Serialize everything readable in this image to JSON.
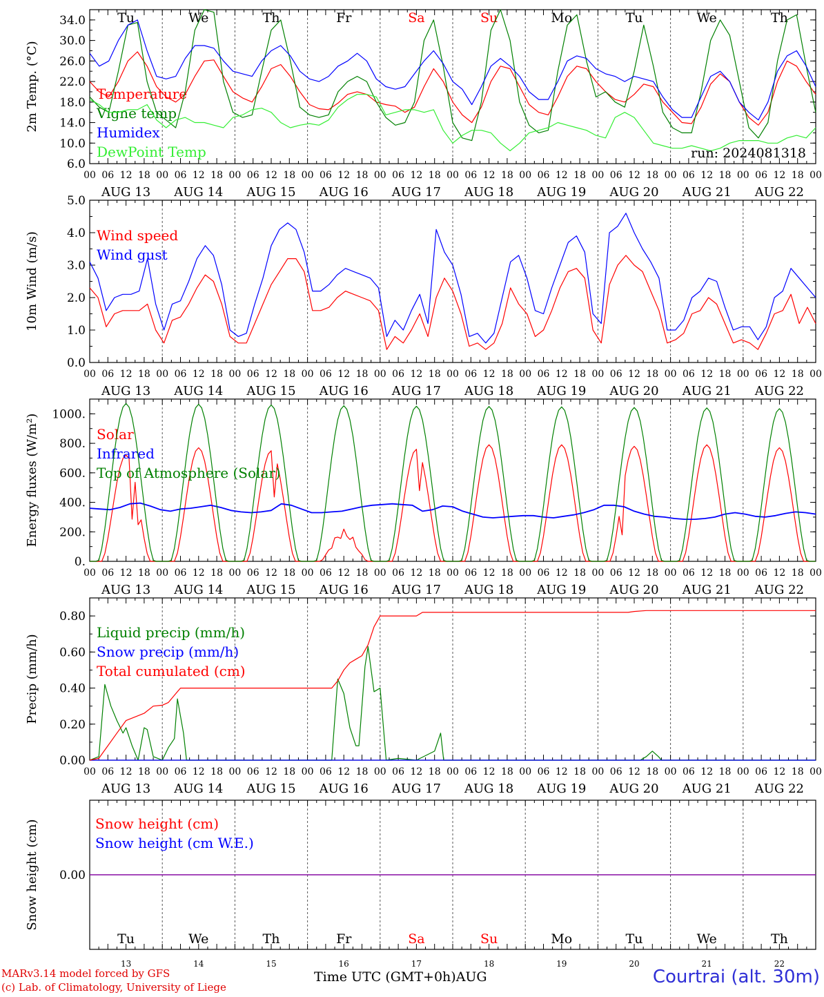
{
  "run_label": "run: 2024081318",
  "footer": {
    "credit_line1": "MARv3.14 model forced by GFS",
    "credit_line2": "(c) Lab. of Climatology, University of Liege",
    "xlabel": "Time UTC (GMT+0h)",
    "month": "AUG",
    "station": "Courtrai (alt. 30m)"
  },
  "days": {
    "names": [
      "Tu",
      "We",
      "Th",
      "Fr",
      "Sa",
      "Su",
      "Mo",
      "Tu",
      "We",
      "Th"
    ],
    "weekend_flags": [
      false,
      false,
      false,
      false,
      true,
      true,
      false,
      false,
      false,
      false
    ],
    "dates": [
      "AUG 13",
      "AUG 14",
      "AUG 15",
      "AUG 16",
      "AUG 17",
      "AUG 18",
      "AUG 19",
      "AUG 20",
      "AUG 21",
      "AUG 22"
    ],
    "numbers": [
      "13",
      "14",
      "15",
      "16",
      "17",
      "18",
      "19",
      "20",
      "21",
      "22"
    ],
    "hour_ticks": [
      "00",
      "06",
      "12",
      "18"
    ],
    "final_tick": "00"
  },
  "colors": {
    "red": "#ff0000",
    "green": "#008000",
    "blue": "#0000ff",
    "lightgreen": "#33ee33",
    "purple": "#8000a0",
    "axis": "#000000"
  },
  "chart_data": [
    {
      "type": "line",
      "ylabel": "2m Temp. (°C)",
      "ylim": [
        6,
        36
      ],
      "yticks": [
        "6.0",
        "10.0",
        "14.0",
        "18.0",
        "22.0",
        "26.0",
        "30.0",
        "34.0"
      ],
      "ytick_values": [
        6,
        10,
        14,
        18,
        22,
        26,
        30,
        34
      ],
      "x": "hours from 2024-08-13 00 UTC, 3-hourly",
      "series": [
        {
          "name": "Temperature",
          "color": "red",
          "values": [
            22.0,
            20.0,
            19.0,
            22.0,
            26.0,
            27.8,
            25.0,
            21.0,
            19.0,
            18.0,
            19.5,
            23.0,
            26.0,
            26.2,
            23.0,
            20.0,
            18.8,
            18.0,
            21.0,
            24.5,
            25.3,
            23.0,
            20.0,
            17.5,
            16.7,
            16.5,
            17.8,
            19.5,
            20.0,
            19.5,
            18.0,
            17.5,
            17.2,
            16.0,
            17.0,
            21.0,
            24.5,
            22.0,
            18.0,
            15.5,
            14.0,
            17.0,
            22.0,
            25.0,
            24.5,
            21.0,
            17.5,
            16.0,
            15.5,
            19.0,
            23.0,
            25.0,
            24.5,
            22.0,
            20.0,
            18.5,
            18.0,
            19.5,
            21.5,
            21.0,
            18.0,
            16.0,
            14.0,
            13.8,
            17.0,
            21.5,
            23.5,
            22.0,
            18.0,
            15.0,
            13.5,
            16.0,
            22.0,
            26.0,
            25.0,
            22.0,
            19.5
          ]
        },
        {
          "name": "Vigne temp",
          "color": "green",
          "values": [
            19.0,
            17.0,
            16.0,
            24.0,
            33.0,
            33.5,
            22.0,
            16.0,
            14.5,
            13.0,
            20.0,
            32.0,
            36.0,
            35.5,
            22.0,
            16.0,
            15.0,
            15.5,
            24.0,
            32.0,
            34.0,
            26.0,
            17.0,
            15.5,
            15.0,
            15.5,
            20.0,
            22.0,
            23.0,
            22.0,
            18.0,
            15.0,
            13.5,
            14.0,
            18.0,
            30.0,
            34.0,
            25.0,
            14.0,
            11.0,
            10.5,
            18.0,
            32.0,
            36.0,
            30.0,
            18.0,
            13.5,
            12.0,
            12.5,
            24.0,
            33.0,
            35.0,
            26.0,
            19.0,
            20.0,
            18.0,
            17.0,
            24.0,
            33.0,
            25.0,
            16.0,
            13.0,
            12.0,
            12.0,
            20.0,
            30.0,
            34.0,
            31.0,
            22.0,
            13.0,
            11.0,
            14.0,
            26.0,
            34.0,
            35.0,
            25.0,
            16.0
          ]
        },
        {
          "name": "Humidex",
          "color": "blue",
          "values": [
            27.5,
            25.0,
            26.0,
            30.0,
            33.0,
            34.0,
            28.0,
            23.0,
            22.5,
            23.0,
            26.5,
            29.0,
            29.0,
            28.5,
            26.0,
            24.0,
            23.5,
            23.0,
            26.0,
            28.0,
            29.0,
            27.0,
            24.0,
            22.5,
            22.0,
            23.0,
            25.0,
            26.0,
            27.5,
            26.0,
            22.5,
            21.0,
            20.5,
            21.0,
            23.5,
            26.0,
            28.0,
            25.5,
            22.0,
            20.5,
            17.5,
            21.0,
            25.0,
            26.5,
            25.0,
            23.0,
            20.0,
            18.5,
            18.5,
            22.0,
            26.0,
            27.0,
            26.5,
            24.5,
            23.5,
            23.0,
            22.0,
            23.0,
            22.5,
            22.0,
            19.0,
            16.5,
            15.0,
            15.0,
            19.0,
            23.0,
            24.0,
            22.0,
            18.0,
            16.0,
            14.5,
            18.0,
            24.0,
            27.0,
            28.0,
            25.0,
            21.0
          ]
        },
        {
          "name": "DewPoint Temp",
          "color": "lightgreen",
          "values": [
            18.5,
            17.5,
            16.0,
            16.0,
            16.5,
            16.5,
            17.5,
            14.5,
            13.0,
            14.5,
            15.0,
            14.0,
            14.0,
            13.5,
            13.0,
            15.0,
            15.5,
            16.5,
            16.8,
            16.0,
            14.0,
            13.0,
            13.5,
            13.8,
            13.5,
            14.5,
            17.0,
            18.5,
            19.5,
            19.5,
            19.0,
            15.5,
            16.0,
            16.5,
            16.5,
            16.0,
            16.5,
            12.5,
            10.0,
            11.5,
            12.5,
            12.5,
            12.0,
            10.0,
            8.5,
            10.0,
            12.0,
            12.5,
            13.0,
            14.0,
            13.5,
            13.0,
            12.5,
            11.5,
            11.0,
            15.0,
            16.0,
            15.0,
            12.5,
            10.0,
            9.5,
            9.0,
            9.0,
            9.5,
            9.0,
            8.5,
            9.0,
            10.0,
            10.5,
            10.5,
            10.5,
            10.0,
            10.0,
            11.0,
            11.5,
            11.0,
            13.0
          ]
        }
      ]
    },
    {
      "type": "line",
      "ylabel": "10m Wind (m/s)",
      "ylim": [
        0,
        5
      ],
      "yticks": [
        "0.0",
        "1.0",
        "2.0",
        "3.0",
        "4.0",
        "5.0"
      ],
      "ytick_values": [
        0,
        1,
        2,
        3,
        4,
        5
      ],
      "series": [
        {
          "name": "Wind speed",
          "color": "red",
          "values": [
            2.3,
            2.0,
            1.1,
            1.5,
            1.6,
            1.6,
            1.6,
            1.8,
            1.0,
            0.6,
            1.3,
            1.4,
            1.8,
            2.3,
            2.7,
            2.5,
            1.8,
            0.8,
            0.6,
            0.6,
            1.2,
            1.8,
            2.4,
            2.8,
            3.2,
            3.2,
            2.8,
            1.6,
            1.6,
            1.7,
            2.0,
            2.2,
            2.1,
            2.0,
            1.9,
            1.6,
            0.4,
            0.8,
            0.6,
            1.0,
            1.5,
            0.8,
            2.0,
            2.6,
            2.2,
            1.5,
            0.5,
            0.6,
            0.4,
            0.6,
            1.2,
            2.3,
            1.8,
            1.5,
            0.8,
            1.0,
            1.6,
            2.3,
            2.8,
            2.9,
            2.6,
            1.0,
            0.6,
            2.4,
            3.0,
            3.3,
            3.0,
            2.8,
            2.2,
            1.6,
            0.6,
            0.7,
            0.9,
            1.5,
            1.6,
            2.0,
            1.8,
            1.2,
            0.6,
            0.7,
            0.6,
            0.4,
            0.9,
            1.5,
            1.6,
            2.1,
            1.2,
            1.7,
            1.2
          ]
        },
        {
          "name": "Wind gust",
          "color": "blue",
          "values": [
            3.1,
            2.6,
            1.6,
            2.0,
            2.1,
            2.1,
            2.2,
            3.2,
            1.8,
            1.0,
            1.8,
            1.9,
            2.5,
            3.2,
            3.6,
            3.3,
            2.4,
            1.0,
            0.8,
            0.9,
            1.8,
            2.6,
            3.6,
            4.1,
            4.3,
            4.1,
            3.4,
            2.2,
            2.2,
            2.4,
            2.7,
            2.9,
            2.8,
            2.7,
            2.6,
            2.3,
            0.8,
            1.3,
            1.0,
            1.6,
            2.1,
            1.2,
            4.1,
            3.4,
            3.0,
            2.1,
            0.8,
            0.9,
            0.6,
            0.9,
            2.0,
            3.1,
            3.3,
            2.6,
            1.6,
            1.5,
            2.3,
            3.0,
            3.7,
            3.9,
            3.4,
            1.5,
            1.2,
            4.0,
            4.2,
            4.6,
            4.0,
            3.5,
            3.1,
            2.6,
            1.0,
            1.0,
            1.3,
            2.0,
            2.2,
            2.6,
            2.5,
            1.7,
            1.0,
            1.1,
            1.1,
            0.7,
            1.1,
            2.0,
            2.2,
            2.9,
            2.6,
            2.3,
            2.0
          ]
        }
      ]
    },
    {
      "type": "line",
      "ylabel": "Energy fluxes (W/m²)",
      "ylim": [
        0,
        1100
      ],
      "yticks": [
        "0.",
        "200.",
        "400.",
        "600.",
        "800.",
        "1000."
      ],
      "ytick_values": [
        0,
        200,
        400,
        600,
        800,
        1000
      ],
      "series": [
        {
          "name": "Solar",
          "color": "red",
          "peaks": [
            720,
            770,
            750,
            220,
            760,
            790,
            790,
            780,
            790,
            770
          ]
        },
        {
          "name": "Infrared",
          "color": "blue",
          "values": [
            360,
            355,
            350,
            365,
            390,
            395,
            375,
            350,
            340,
            355,
            360,
            370,
            380,
            365,
            345,
            335,
            330,
            335,
            345,
            390,
            380,
            355,
            330,
            330,
            335,
            340,
            355,
            370,
            380,
            385,
            390,
            385,
            380,
            340,
            350,
            375,
            370,
            340,
            320,
            300,
            295,
            300,
            305,
            310,
            310,
            300,
            295,
            305,
            315,
            330,
            350,
            380,
            380,
            370,
            340,
            320,
            305,
            300,
            290,
            285,
            285,
            290,
            300,
            320,
            330,
            320,
            305,
            300,
            310,
            325,
            335,
            330,
            320
          ]
        },
        {
          "name": "Top of Atmosphere (Solar)",
          "color": "green",
          "peaks": [
            1070,
            1065,
            1060,
            1055,
            1052,
            1050,
            1047,
            1043,
            1040,
            1035
          ]
        }
      ]
    },
    {
      "type": "line",
      "ylabel": "Precip (mm/h)",
      "ylim": [
        0,
        0.9
      ],
      "yticks": [
        "0.00",
        "0.20",
        "0.40",
        "0.60",
        "0.80"
      ],
      "ytick_values": [
        0,
        0.2,
        0.4,
        0.6,
        0.8
      ],
      "series": [
        {
          "name": "Liquid precip (mm/h)",
          "color": "green",
          "points": [
            [
              0,
              0
            ],
            [
              3,
              0.02
            ],
            [
              5,
              0.42
            ],
            [
              7,
              0.3
            ],
            [
              9,
              0.22
            ],
            [
              11,
              0.15
            ],
            [
              12,
              0.18
            ],
            [
              14,
              0.08
            ],
            [
              16,
              0.0
            ],
            [
              18,
              0.18
            ],
            [
              19,
              0.17
            ],
            [
              21,
              0.02
            ],
            [
              24,
              0.0
            ],
            [
              26,
              0.07
            ],
            [
              28,
              0.12
            ],
            [
              29,
              0.34
            ],
            [
              31,
              0.15
            ],
            [
              32,
              0.0
            ],
            [
              80,
              0.0
            ],
            [
              82,
              0.45
            ],
            [
              84,
              0.37
            ],
            [
              86,
              0.18
            ],
            [
              88,
              0.08
            ],
            [
              89,
              0.08
            ],
            [
              91,
              0.52
            ],
            [
              92,
              0.63
            ],
            [
              94,
              0.38
            ],
            [
              96,
              0.4
            ],
            [
              98,
              0.0
            ],
            [
              102,
              0.01
            ],
            [
              108,
              0.0
            ],
            [
              114,
              0.05
            ],
            [
              116,
              0.15
            ],
            [
              117,
              0.0
            ],
            [
              182,
              0.0
            ],
            [
              184,
              0.02
            ],
            [
              186,
              0.05
            ],
            [
              188,
              0.02
            ],
            [
              189,
              0.0
            ],
            [
              240,
              0.0
            ]
          ]
        },
        {
          "name": "Snow precip (mm/h)",
          "color": "blue",
          "points": [
            [
              0,
              0
            ],
            [
              240,
              0
            ]
          ]
        },
        {
          "name": "Total cumulated (cm)",
          "color": "red",
          "points": [
            [
              0,
              0
            ],
            [
              3,
              0.01
            ],
            [
              6,
              0.08
            ],
            [
              9,
              0.15
            ],
            [
              12,
              0.22
            ],
            [
              15,
              0.24
            ],
            [
              18,
              0.26
            ],
            [
              21,
              0.3
            ],
            [
              24,
              0.305
            ],
            [
              26,
              0.32
            ],
            [
              28,
              0.36
            ],
            [
              30,
              0.4
            ],
            [
              78,
              0.4
            ],
            [
              80,
              0.4
            ],
            [
              82,
              0.44
            ],
            [
              84,
              0.5
            ],
            [
              86,
              0.54
            ],
            [
              88,
              0.56
            ],
            [
              90,
              0.58
            ],
            [
              92,
              0.64
            ],
            [
              94,
              0.74
            ],
            [
              96,
              0.8
            ],
            [
              100,
              0.8
            ],
            [
              108,
              0.8
            ],
            [
              110,
              0.82
            ],
            [
              178,
              0.82
            ],
            [
              180,
              0.825
            ],
            [
              184,
              0.83
            ],
            [
              240,
              0.83
            ]
          ]
        }
      ]
    },
    {
      "type": "line",
      "ylabel": "Snow height (cm)",
      "ylim": [
        -1,
        1
      ],
      "yticks": [
        "0.00"
      ],
      "ytick_values": [
        0
      ],
      "series": [
        {
          "name": "Snow height (cm)",
          "color": "red",
          "points": [
            [
              0,
              0
            ],
            [
              240,
              0
            ]
          ]
        },
        {
          "name": "Snow height (cm W.E.)",
          "color": "blue",
          "points": [
            [
              0,
              0
            ],
            [
              240,
              0
            ]
          ]
        }
      ]
    }
  ]
}
